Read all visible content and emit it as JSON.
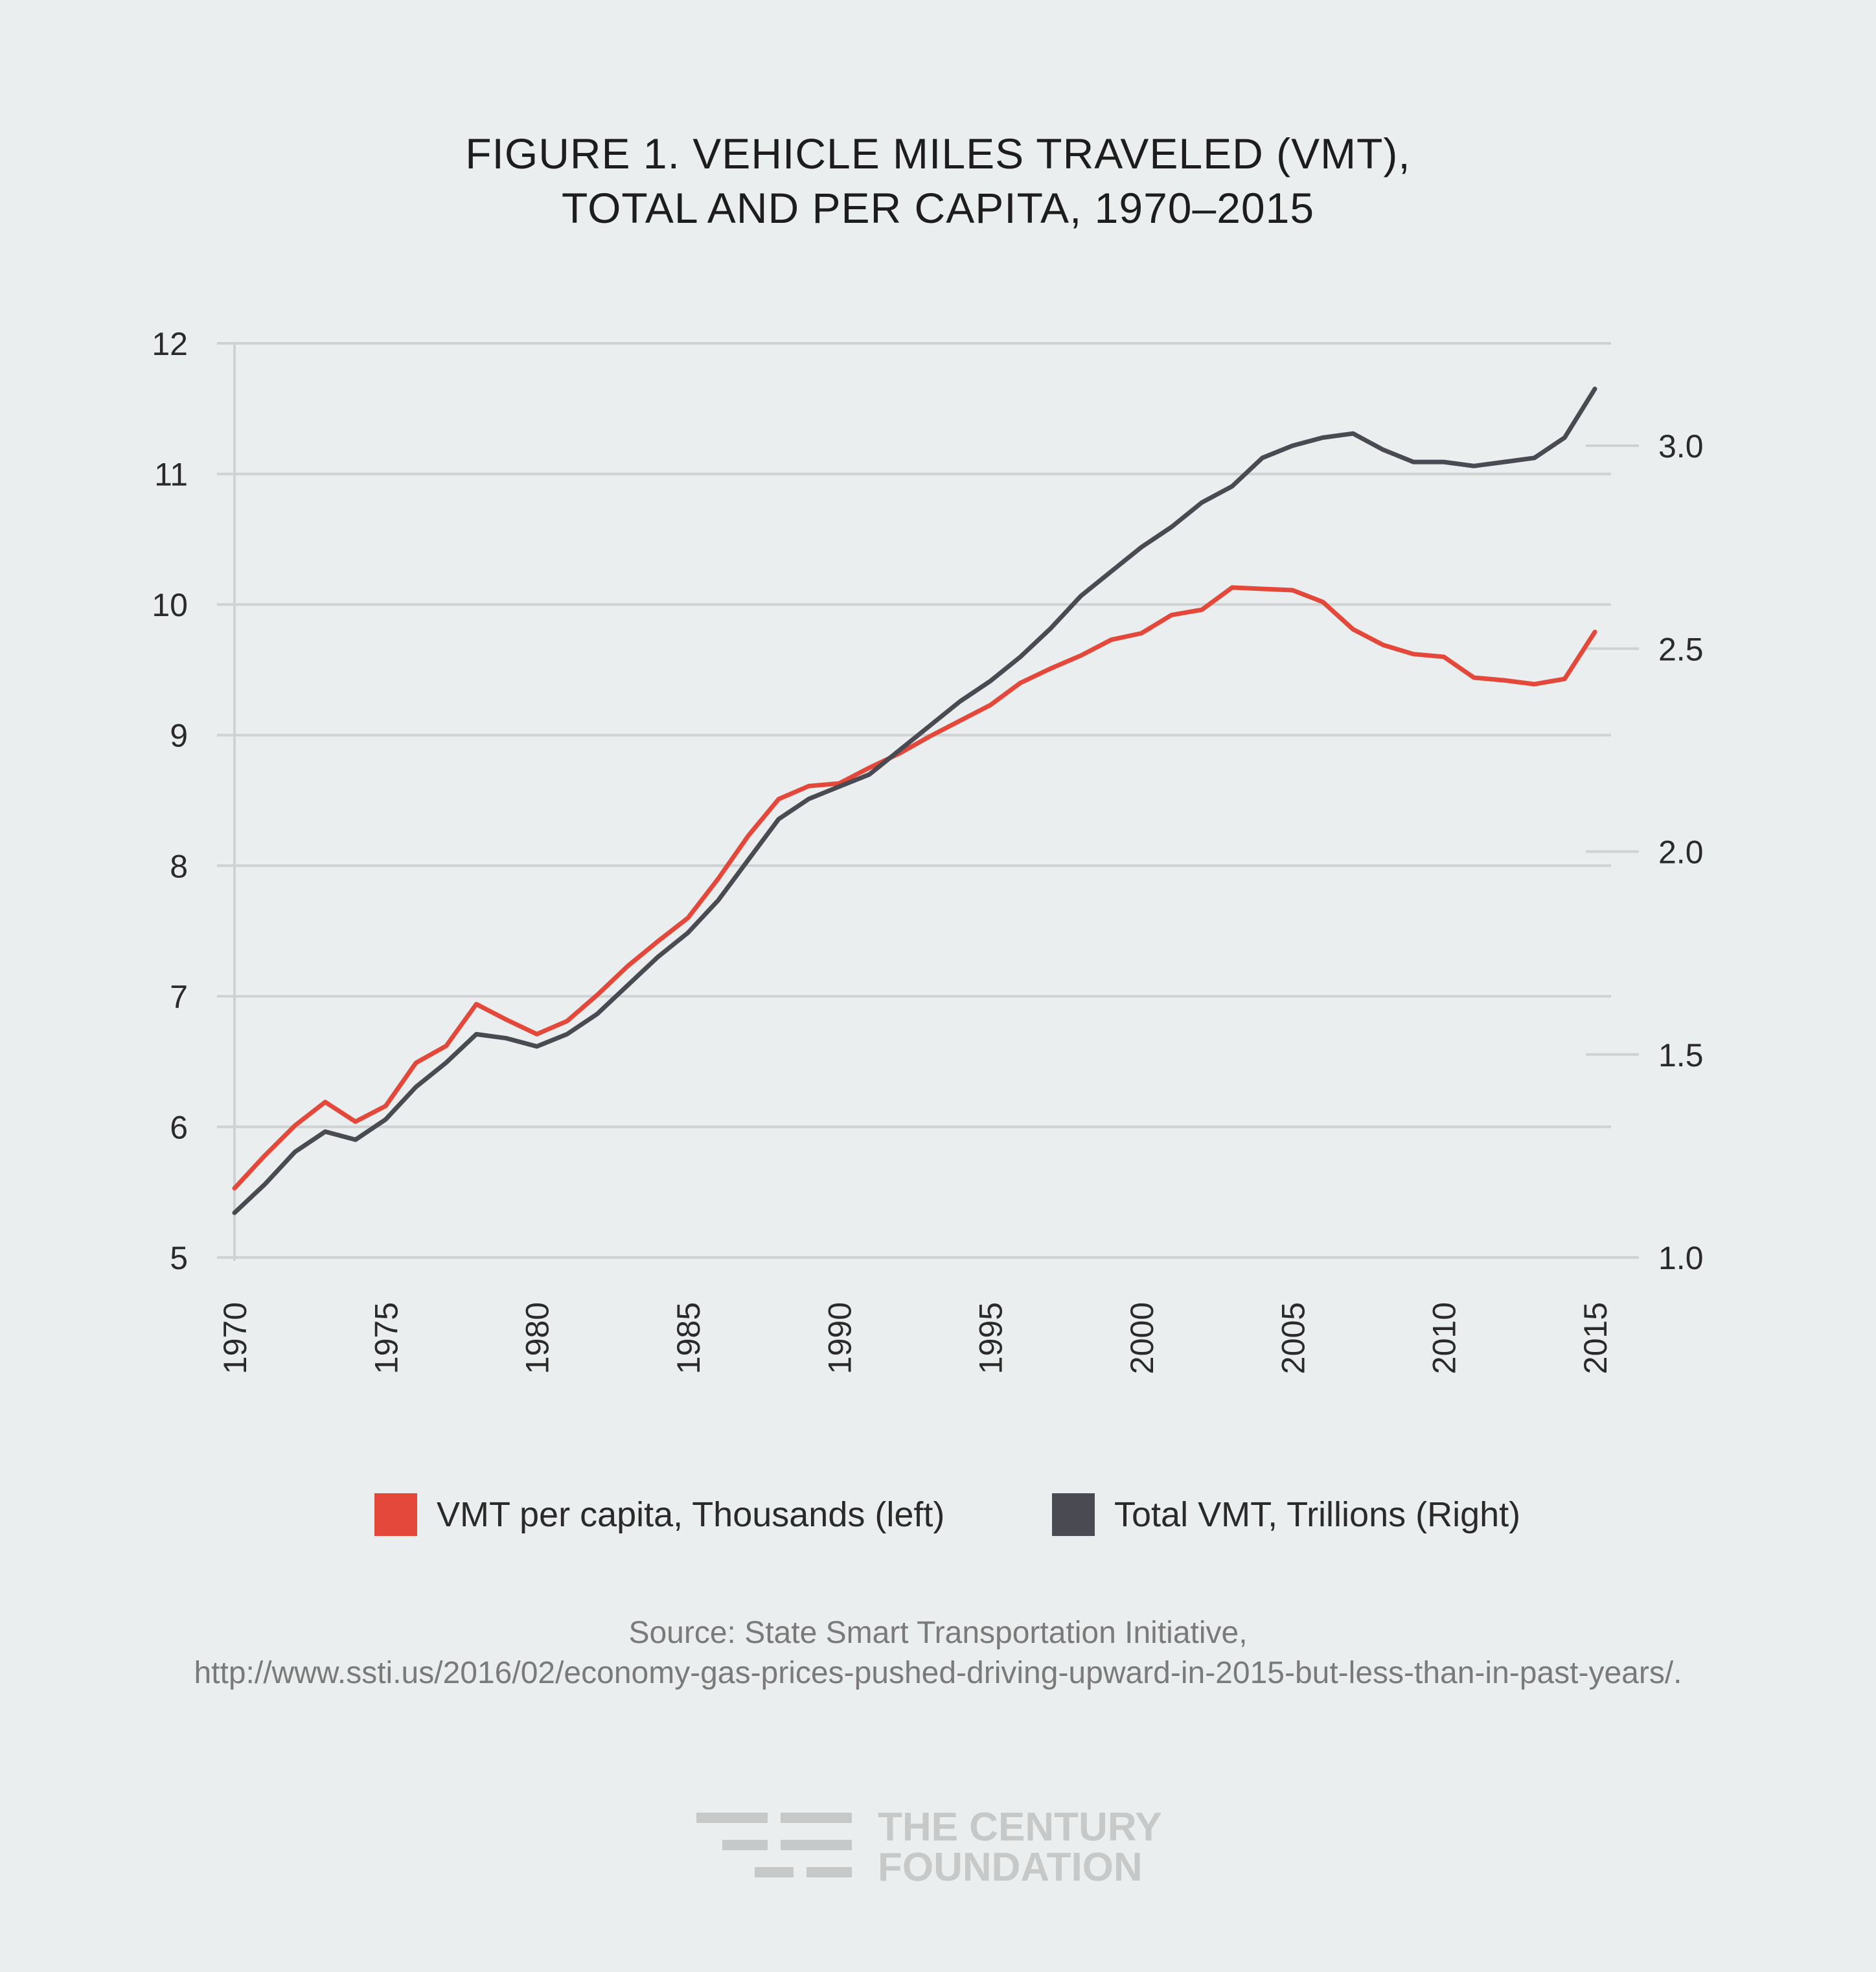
{
  "title": {
    "line1": "FIGURE 1. VEHICLE MILES TRAVELED (VMT),",
    "line2": "TOTAL AND PER CAPITA, 1970–2015"
  },
  "legend": {
    "per_capita": "VMT per capita, Thousands (left)",
    "total": "Total VMT, Trillions (Right)"
  },
  "source": {
    "line1": "Source: State Smart Transportation Initiative,",
    "line2": "http://www.ssti.us/2016/02/economy-gas-prices-pushed-driving-upward-in-2015-but-less-than-in-past-years/."
  },
  "logo": {
    "line1": "THE CENTURY",
    "line2": "FOUNDATION"
  },
  "colors": {
    "per_capita": "#e4483a",
    "total": "#4a4a52",
    "grid": "#cfd2d2",
    "background": "#ebeeee"
  },
  "chart_data": {
    "type": "line",
    "title": "FIGURE 1. VEHICLE MILES TRAVELED (VMT), TOTAL AND PER CAPITA, 1970–2015",
    "xlabel": "",
    "ylabel_left": "VMT per capita, Thousands",
    "ylabel_right": "Total VMT, Trillions",
    "xlim": [
      1970,
      2015
    ],
    "ylim_left": [
      5,
      12
    ],
    "ylim_right": [
      1.0,
      3.25
    ],
    "x_ticks": [
      1970,
      1975,
      1980,
      1985,
      1990,
      1995,
      2000,
      2005,
      2010,
      2015
    ],
    "y_ticks_left": [
      5,
      6,
      7,
      8,
      9,
      10,
      11,
      12
    ],
    "y_ticks_right": [
      "1.0",
      "1.5",
      "2.0",
      "2.5",
      "3.0"
    ],
    "x": [
      1970,
      1971,
      1972,
      1973,
      1974,
      1975,
      1976,
      1977,
      1978,
      1979,
      1980,
      1981,
      1982,
      1983,
      1984,
      1985,
      1986,
      1987,
      1988,
      1989,
      1990,
      1991,
      1992,
      1993,
      1994,
      1995,
      1996,
      1997,
      1998,
      1999,
      2000,
      2001,
      2002,
      2003,
      2004,
      2005,
      2006,
      2007,
      2008,
      2009,
      2010,
      2011,
      2012,
      2013,
      2014,
      2015
    ],
    "series": [
      {
        "name": "VMT per capita, Thousands (left)",
        "axis": "left",
        "values": [
          5.53,
          5.78,
          6.01,
          6.19,
          6.04,
          6.16,
          6.49,
          6.62,
          6.94,
          6.82,
          6.71,
          6.81,
          7.01,
          7.23,
          7.42,
          7.6,
          7.9,
          8.23,
          8.51,
          8.61,
          8.63,
          8.75,
          8.86,
          8.99,
          9.11,
          9.23,
          9.4,
          9.51,
          9.61,
          9.73,
          9.78,
          9.92,
          9.96,
          10.13,
          10.12,
          10.11,
          10.02,
          9.81,
          9.69,
          9.62,
          9.6,
          9.44,
          9.42,
          9.39,
          9.43,
          9.79
        ]
      },
      {
        "name": "Total VMT, Trillions (Right)",
        "axis": "right",
        "values": [
          1.11,
          1.18,
          1.26,
          1.31,
          1.29,
          1.34,
          1.42,
          1.48,
          1.55,
          1.54,
          1.52,
          1.55,
          1.6,
          1.67,
          1.74,
          1.8,
          1.88,
          1.98,
          2.08,
          2.13,
          2.16,
          2.19,
          2.25,
          2.31,
          2.37,
          2.42,
          2.48,
          2.55,
          2.63,
          2.69,
          2.75,
          2.8,
          2.86,
          2.9,
          2.97,
          3.0,
          3.02,
          3.03,
          2.99,
          2.96,
          2.96,
          2.95,
          2.96,
          2.97,
          3.02,
          3.14
        ]
      }
    ]
  }
}
